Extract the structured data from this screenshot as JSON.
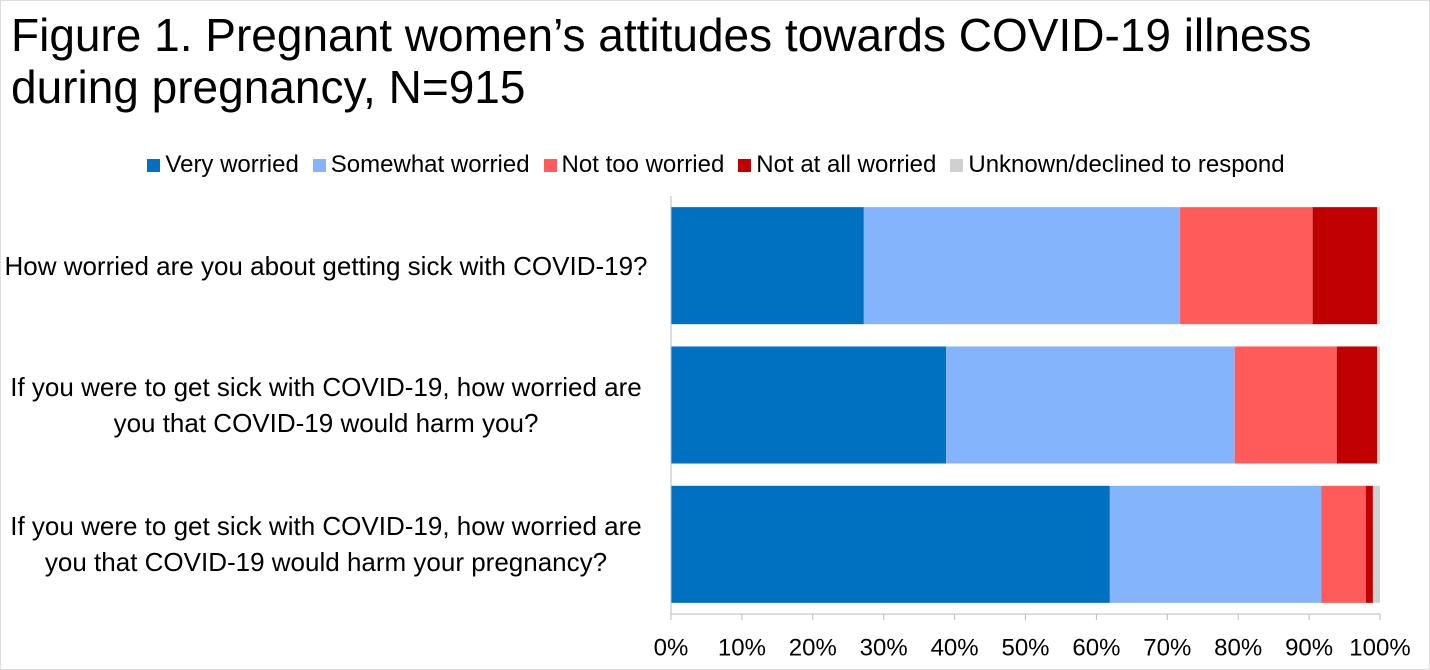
{
  "chart_data": {
    "type": "stacked-barh",
    "title": "Figure 1. Pregnant women’s attitudes towards COVID-19 illness during pregnancy, N=915",
    "categories": [
      "How worried are you about getting sick with COVID-19?",
      "If you were to get sick with COVID-19, how worried are you that COVID-19 would harm you?",
      "If you were to get sick with COVID-19, how worried are you that COVID-19 would harm your pregnancy?"
    ],
    "series": [
      {
        "name": "Very worried",
        "color": "#0070c0",
        "values": [
          27.2,
          38.8,
          61.9
        ]
      },
      {
        "name": "Somewhat worried",
        "color": "#84b4fb",
        "values": [
          44.6,
          40.7,
          29.8
        ]
      },
      {
        "name": "Not too worried",
        "color": "#ff5b5b",
        "values": [
          18.7,
          14.4,
          6.3
        ]
      },
      {
        "name": "Not at all worried",
        "color": "#c00000",
        "values": [
          9.1,
          5.7,
          1.0
        ]
      },
      {
        "name": "Unknown/declined to respond",
        "color": "#d0d0d0",
        "values": [
          0.4,
          0.4,
          1.0
        ]
      }
    ],
    "xlim": [
      0,
      100
    ],
    "xticks": [
      {
        "value": 0,
        "label": "0%"
      },
      {
        "value": 10,
        "label": "10%"
      },
      {
        "value": 20,
        "label": "20%"
      },
      {
        "value": 30,
        "label": "30%"
      },
      {
        "value": 40,
        "label": "40%"
      },
      {
        "value": 50,
        "label": "50%"
      },
      {
        "value": 60,
        "label": "60%"
      },
      {
        "value": 70,
        "label": "70%"
      },
      {
        "value": 80,
        "label": "80%"
      },
      {
        "value": 90,
        "label": "90%"
      },
      {
        "value": 100,
        "label": "100%"
      }
    ],
    "legend": "top"
  }
}
